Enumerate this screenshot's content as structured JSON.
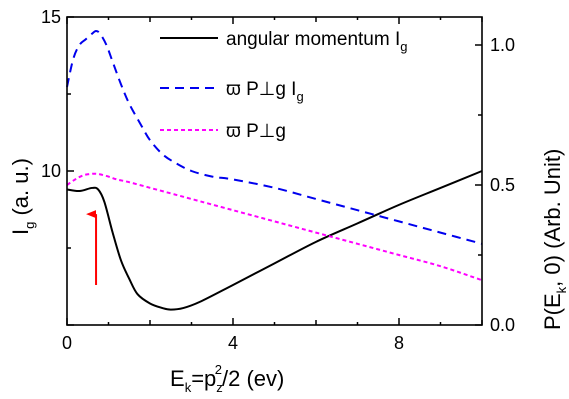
{
  "chart_data": {
    "type": "line",
    "xlabel": {
      "main": "E",
      "sub_k": "k",
      "eq": "=p",
      "sub_z": "z",
      "sup_2": "2",
      "tail": "/2 (ev)"
    },
    "ylabel_left": {
      "main": "I",
      "sub": "g",
      "tail": " (a. u.)"
    },
    "ylabel_right": {
      "main": "P(E",
      "sub": "k",
      "tail": ", 0) (Arb. Unit)"
    },
    "xlim": [
      0,
      10
    ],
    "ylim_left": [
      5,
      15
    ],
    "ylim_right": [
      0,
      1.1
    ],
    "x_ticks": [
      {
        "value": 0,
        "label": "0"
      },
      {
        "value": 4,
        "label": "4"
      },
      {
        "value": 8,
        "label": "8"
      }
    ],
    "y_left_ticks": [
      {
        "value": 10,
        "label": "10"
      },
      {
        "value": 15,
        "label": "15"
      }
    ],
    "y_right_ticks": [
      {
        "value": 0.0,
        "label": "0.0"
      },
      {
        "value": 0.5,
        "label": "0.5"
      },
      {
        "value": 1.0,
        "label": "1.0"
      }
    ],
    "legend": [
      {
        "text": "angular momentum I",
        "sub": "g",
        "style": "solid",
        "color": "#000000"
      },
      {
        "text": "ϖ P⊥g I",
        "sub": "g",
        "style": "dashed",
        "color": "#0000ee"
      },
      {
        "text": "ϖ P⊥g",
        "sub": "",
        "style": "dotted",
        "color": "#ff00ff"
      }
    ],
    "series": [
      {
        "axis": "left",
        "color": "#000000",
        "style": "solid",
        "x": [
          0,
          0.3,
          0.6,
          0.75,
          0.9,
          1.1,
          1.3,
          1.5,
          1.7,
          2.0,
          2.3,
          2.5,
          2.8,
          3.2,
          4,
          5,
          6,
          7,
          8,
          9,
          10
        ],
        "y": [
          9.4,
          9.35,
          9.45,
          9.4,
          9.0,
          8.0,
          7.1,
          6.5,
          6.0,
          5.7,
          5.55,
          5.5,
          5.55,
          5.75,
          6.3,
          7.0,
          7.7,
          8.3,
          8.9,
          9.45,
          10.0
        ]
      },
      {
        "axis": "right",
        "color": "#0000ee",
        "style": "dashed",
        "x": [
          0,
          0.15,
          0.3,
          0.45,
          0.6,
          0.7,
          0.8,
          0.95,
          1.1,
          1.3,
          1.5,
          1.8,
          2.0,
          2.3,
          2.6,
          3,
          3.5,
          4,
          5,
          6,
          7,
          8,
          9,
          10
        ],
        "y": [
          0.85,
          0.95,
          1.0,
          1.02,
          1.04,
          1.05,
          1.04,
          1.0,
          0.94,
          0.86,
          0.79,
          0.71,
          0.66,
          0.61,
          0.58,
          0.55,
          0.53,
          0.52,
          0.49,
          0.45,
          0.41,
          0.37,
          0.33,
          0.29
        ]
      },
      {
        "axis": "right",
        "color": "#ff00ff",
        "style": "dotted",
        "x": [
          0,
          0.2,
          0.4,
          0.6,
          0.7,
          0.8,
          1.0,
          1.2,
          1.5,
          2,
          2.5,
          3,
          4,
          5,
          6,
          7,
          8,
          9,
          10
        ],
        "y": [
          0.5,
          0.52,
          0.535,
          0.54,
          0.54,
          0.538,
          0.53,
          0.52,
          0.51,
          0.49,
          0.47,
          0.45,
          0.41,
          0.37,
          0.33,
          0.29,
          0.25,
          0.21,
          0.16
        ]
      }
    ],
    "annotation": {
      "type": "arrow",
      "color": "#ff0000",
      "x": 0.7,
      "y_from": 6.3,
      "y_to": 8.6,
      "axis": "left"
    }
  }
}
